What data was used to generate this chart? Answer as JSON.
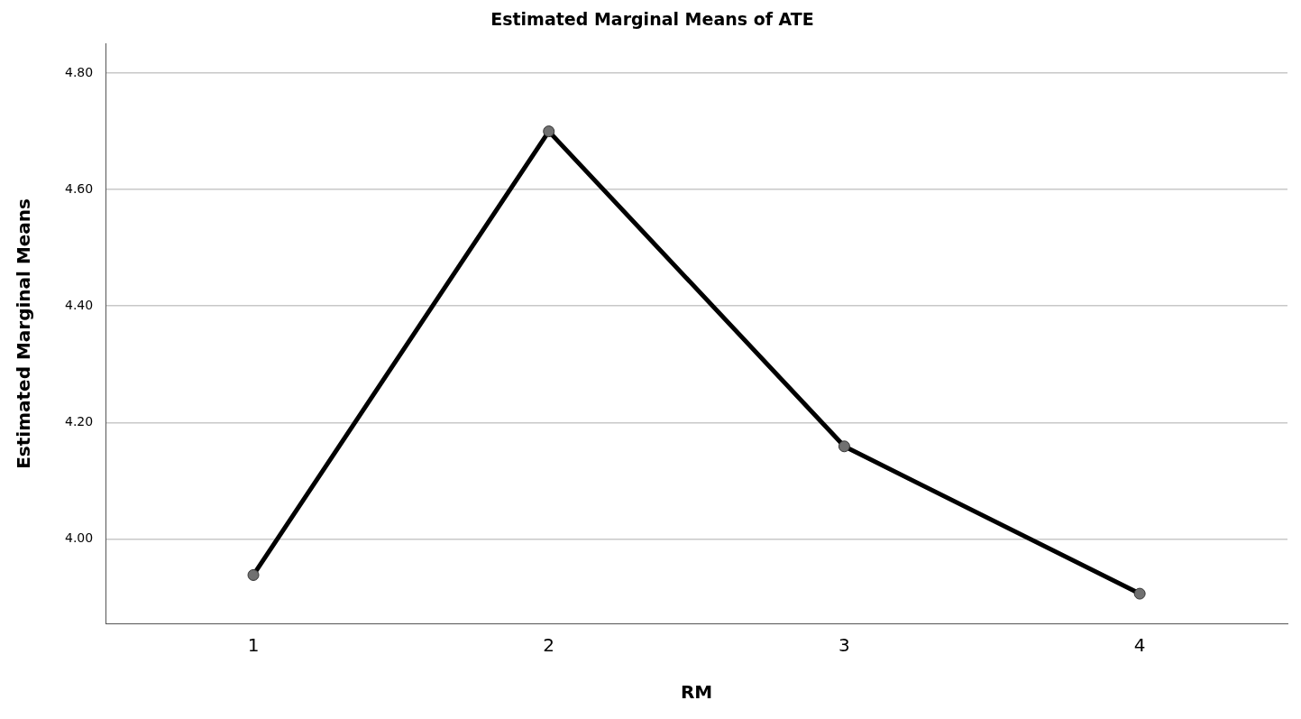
{
  "chart_data": {
    "type": "line",
    "title": "Estimated Marginal Means of ATE",
    "xlabel": "RM",
    "ylabel": "Estimated Marginal Means",
    "categories": [
      "1",
      "2",
      "3",
      "4"
    ],
    "series": [
      {
        "color": "#000000",
        "values": [
          3.938,
          4.7,
          4.159,
          3.906
        ]
      }
    ],
    "ylim": [
      3.855,
      4.85
    ],
    "yticks": [
      {
        "value": 4,
        "label": "4.00"
      },
      {
        "value": 4.2,
        "label": "4.20"
      },
      {
        "value": 4.4,
        "label": "4.40"
      },
      {
        "value": 4.6,
        "label": "4.60"
      },
      {
        "value": 4.8,
        "label": "4.80"
      }
    ],
    "grid": "y",
    "legend": false,
    "marker": "circle",
    "line_style": "solid"
  }
}
